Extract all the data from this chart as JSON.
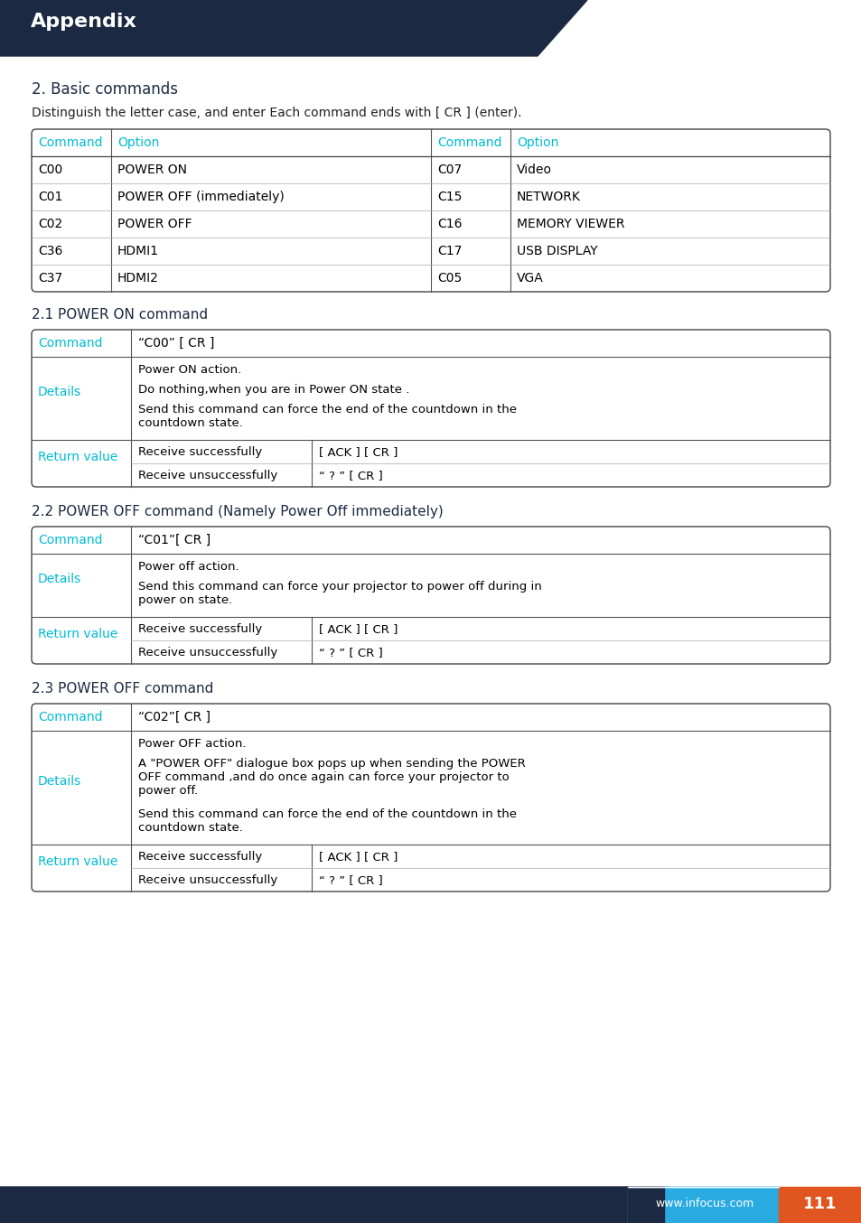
{
  "title": "Appendix",
  "title_bg": "#1b2a42",
  "cyan": "#00bcd4",
  "dark_navy": "#1b2a42",
  "orange": "#e05520",
  "light_blue_footer": "#29abe2",
  "page_num": "111",
  "website": "www.infocus.com",
  "section_title": "2. Basic commands",
  "section_desc": "Distinguish the letter case, and enter Each command ends with [ CR ] (enter).",
  "table1_headers": [
    "Command",
    "Option",
    "Command",
    "Option"
  ],
  "table1_rows": [
    [
      "C00",
      "POWER ON",
      "C07",
      "Video"
    ],
    [
      "C01",
      "POWER OFF (immediately)",
      "C15",
      "NETWORK"
    ],
    [
      "C02",
      "POWER OFF",
      "C16",
      "MEMORY VIEWER"
    ],
    [
      "C36",
      "HDMI1",
      "C17",
      "USB DISPLAY"
    ],
    [
      "C37",
      "HDMI2",
      "C05",
      "VGA"
    ]
  ],
  "section2_title": "2.1 POWER ON command",
  "table2": {
    "command_label": "Command",
    "command_value": "“C00” [ CR ]",
    "details_label": "Details",
    "details_lines": [
      "Power ON action.",
      "Do nothing,when you are in Power ON state .",
      "Send this command can force the end of the countdown in the\ncountdown state."
    ],
    "return_label": "Return value",
    "return_rows": [
      [
        "Receive successfully",
        "[ ACK ] [ CR ]"
      ],
      [
        "Receive unsuccessfully",
        "“ ? ” [ CR ]"
      ]
    ]
  },
  "section3_title": "2.2 POWER OFF command (Namely Power Off immediately)",
  "table3": {
    "command_label": "Command",
    "command_value": "“C01”[ CR ]",
    "details_label": "Details",
    "details_lines": [
      "Power off action.",
      "Send this command can force your projector to power off during in\npower on state."
    ],
    "return_label": "Return value",
    "return_rows": [
      [
        "Receive successfully",
        "[ ACK ] [ CR ]"
      ],
      [
        "Receive unsuccessfully",
        "“ ? ” [ CR ]"
      ]
    ]
  },
  "section4_title": "2.3 POWER OFF command",
  "table4": {
    "command_label": "Command",
    "command_value": "“C02”[ CR ]",
    "details_label": "Details",
    "details_lines": [
      "Power OFF action.",
      "A \"POWER OFF\" dialogue box pops up when sending the POWER\nOFF command ,and do once again can force your projector to\npower off.",
      "Send this command can force the end of the countdown in the\ncountdown state."
    ],
    "return_label": "Return value",
    "return_rows": [
      [
        "Receive successfully",
        "[ ACK ] [ CR ]"
      ],
      [
        "Receive unsuccessfully",
        "“ ? ” [ CR ]"
      ]
    ]
  }
}
